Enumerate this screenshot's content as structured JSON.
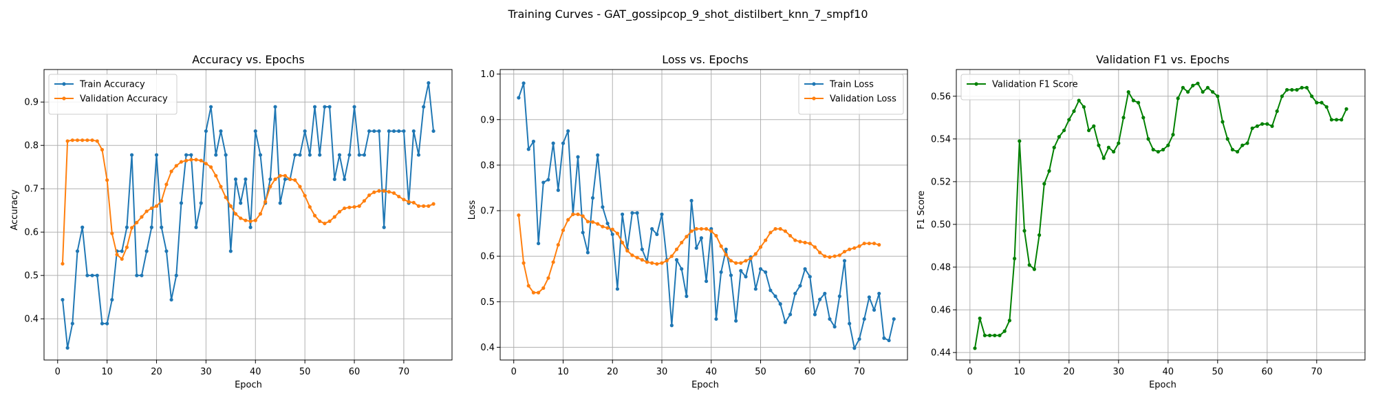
{
  "figure": {
    "title": "Training Curves - GAT_gossipcop_9_shot_distilbert_knn_7_smpf10"
  },
  "colors": {
    "train": "#1f77b4",
    "validation": "#ff7f0e",
    "f1": "#008000",
    "grid": "#b0b0b0",
    "axes": "#000000"
  },
  "chart_data": [
    {
      "type": "line",
      "title": "Accuracy vs. Epochs",
      "xlabel": "Epoch",
      "ylabel": "Accuracy",
      "xlim": [
        -2.75,
        79.75
      ],
      "ylim": [
        0.305,
        0.975
      ],
      "xticks": [
        0,
        10,
        20,
        30,
        40,
        50,
        60,
        70
      ],
      "yticks": [
        0.4,
        0.5,
        0.6,
        0.7,
        0.8,
        0.9
      ],
      "ytick_labels": [
        "0.4",
        "0.5",
        "0.6",
        "0.7",
        "0.8",
        "0.9"
      ],
      "grid": true,
      "legend_position": "upper-left",
      "series": [
        {
          "name": "Train Accuracy",
          "color": "train",
          "y": [
            0.444,
            0.333,
            0.389,
            0.556,
            0.611,
            0.5,
            0.5,
            0.5,
            0.389,
            0.389,
            0.444,
            0.556,
            0.556,
            0.611,
            0.778,
            0.5,
            0.5,
            0.556,
            0.611,
            0.778,
            0.611,
            0.556,
            0.444,
            0.5,
            0.667,
            0.778,
            0.778,
            0.611,
            0.667,
            0.833,
            0.889,
            0.778,
            0.833,
            0.778,
            0.556,
            0.722,
            0.667,
            0.722,
            0.611,
            0.833,
            0.778,
            0.667,
            0.722,
            0.889,
            0.667,
            0.722,
            0.722,
            0.778,
            0.778,
            0.833,
            0.778,
            0.889,
            0.778,
            0.889,
            0.889,
            0.722,
            0.778,
            0.722,
            0.778,
            0.889,
            0.778,
            0.778,
            0.833,
            0.833,
            0.833,
            0.611,
            0.833,
            0.833,
            0.833,
            0.833,
            0.667,
            0.833,
            0.778,
            0.889,
            0.944,
            0.833
          ]
        },
        {
          "name": "Validation Accuracy",
          "color": "validation",
          "y": [
            0.527,
            0.81,
            0.812,
            0.812,
            0.812,
            0.812,
            0.812,
            0.81,
            0.79,
            0.72,
            0.597,
            0.548,
            0.538,
            0.565,
            0.61,
            0.622,
            0.635,
            0.648,
            0.655,
            0.66,
            0.672,
            0.71,
            0.74,
            0.753,
            0.762,
            0.765,
            0.767,
            0.767,
            0.765,
            0.758,
            0.75,
            0.73,
            0.705,
            0.68,
            0.66,
            0.642,
            0.632,
            0.627,
            0.625,
            0.627,
            0.642,
            0.67,
            0.705,
            0.722,
            0.73,
            0.73,
            0.722,
            0.72,
            0.705,
            0.684,
            0.658,
            0.638,
            0.625,
            0.62,
            0.625,
            0.635,
            0.647,
            0.655,
            0.657,
            0.658,
            0.66,
            0.672,
            0.685,
            0.692,
            0.695,
            0.695,
            0.693,
            0.69,
            0.682,
            0.675,
            0.67,
            0.668,
            0.66,
            0.66,
            0.66,
            0.665
          ]
        }
      ]
    },
    {
      "type": "line",
      "title": "Loss vs. Epochs",
      "xlabel": "Epoch",
      "ylabel": "Loss",
      "xlim": [
        -2.75,
        79.75
      ],
      "ylim": [
        0.372,
        1.01
      ],
      "xticks": [
        0,
        10,
        20,
        30,
        40,
        50,
        60,
        70
      ],
      "yticks": [
        0.4,
        0.5,
        0.6,
        0.7,
        0.8,
        0.9,
        1.0
      ],
      "ytick_labels": [
        "0.4",
        "0.5",
        "0.6",
        "0.7",
        "0.8",
        "0.9",
        "1.0"
      ],
      "grid": true,
      "legend_position": "upper-right",
      "series": [
        {
          "name": "Train Loss",
          "color": "train",
          "y": [
            0.948,
            0.98,
            0.835,
            0.852,
            0.628,
            0.762,
            0.768,
            0.848,
            0.745,
            0.848,
            0.875,
            0.692,
            0.818,
            0.652,
            0.608,
            0.728,
            0.822,
            0.708,
            0.672,
            0.648,
            0.528,
            0.692,
            0.615,
            0.695,
            0.695,
            0.615,
            0.588,
            0.66,
            0.648,
            0.692,
            0.592,
            0.448,
            0.592,
            0.572,
            0.512,
            0.722,
            0.618,
            0.64,
            0.545,
            0.66,
            0.462,
            0.565,
            0.615,
            0.558,
            0.458,
            0.568,
            0.555,
            0.598,
            0.528,
            0.572,
            0.565,
            0.525,
            0.512,
            0.495,
            0.455,
            0.472,
            0.518,
            0.535,
            0.572,
            0.555,
            0.472,
            0.505,
            0.518,
            0.462,
            0.445,
            0.512,
            0.59,
            0.452,
            0.398,
            0.418,
            0.462,
            0.51,
            0.482,
            0.518,
            0.42,
            0.415,
            0.462
          ]
        },
        {
          "name": "Validation Loss",
          "color": "validation",
          "y": [
            0.69,
            0.585,
            0.535,
            0.52,
            0.52,
            0.53,
            0.552,
            0.587,
            0.625,
            0.657,
            0.68,
            0.692,
            0.692,
            0.688,
            0.676,
            0.675,
            0.671,
            0.665,
            0.662,
            0.659,
            0.65,
            0.63,
            0.612,
            0.602,
            0.597,
            0.592,
            0.587,
            0.585,
            0.583,
            0.585,
            0.59,
            0.6,
            0.615,
            0.63,
            0.643,
            0.655,
            0.66,
            0.66,
            0.66,
            0.655,
            0.645,
            0.622,
            0.603,
            0.59,
            0.585,
            0.585,
            0.59,
            0.595,
            0.605,
            0.62,
            0.635,
            0.652,
            0.66,
            0.66,
            0.655,
            0.645,
            0.635,
            0.632,
            0.63,
            0.628,
            0.62,
            0.608,
            0.6,
            0.598,
            0.6,
            0.602,
            0.61,
            0.615,
            0.618,
            0.622,
            0.628,
            0.628,
            0.628,
            0.625
          ]
        }
      ]
    },
    {
      "type": "line",
      "title": "Validation F1 vs. Epochs",
      "xlabel": "Epoch",
      "ylabel": "F1 Score",
      "xlim": [
        -2.75,
        79.75
      ],
      "ylim": [
        0.4365,
        0.5725
      ],
      "xticks": [
        0,
        10,
        20,
        30,
        40,
        50,
        60,
        70
      ],
      "yticks": [
        0.44,
        0.46,
        0.48,
        0.5,
        0.52,
        0.54,
        0.56
      ],
      "ytick_labels": [
        "0.44",
        "0.46",
        "0.48",
        "0.50",
        "0.52",
        "0.54",
        "0.56"
      ],
      "grid": true,
      "legend_position": "upper-left",
      "series": [
        {
          "name": "Validation F1 Score",
          "color": "f1",
          "y": [
            0.442,
            0.456,
            0.448,
            0.448,
            0.448,
            0.448,
            0.45,
            0.455,
            0.484,
            0.539,
            0.497,
            0.481,
            0.479,
            0.495,
            0.519,
            0.525,
            0.536,
            0.541,
            0.544,
            0.549,
            0.553,
            0.558,
            0.555,
            0.544,
            0.546,
            0.537,
            0.531,
            0.536,
            0.534,
            0.538,
            0.55,
            0.562,
            0.558,
            0.557,
            0.55,
            0.54,
            0.535,
            0.534,
            0.535,
            0.537,
            0.542,
            0.559,
            0.564,
            0.562,
            0.565,
            0.566,
            0.562,
            0.564,
            0.562,
            0.56,
            0.548,
            0.54,
            0.535,
            0.534,
            0.537,
            0.538,
            0.545,
            0.546,
            0.547,
            0.547,
            0.546,
            0.553,
            0.56,
            0.563,
            0.563,
            0.563,
            0.564,
            0.564,
            0.56,
            0.557,
            0.557,
            0.555,
            0.549,
            0.549,
            0.549,
            0.554
          ]
        }
      ]
    }
  ]
}
